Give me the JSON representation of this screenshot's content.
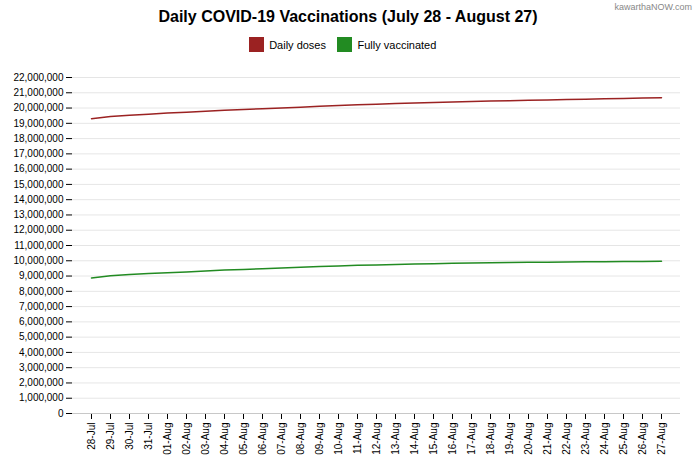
{
  "chart_data": {
    "type": "line",
    "title": "Daily COVID-19 Vaccinations (July 28 - August 27)",
    "annotations": [
      "kawarthaNOW.com"
    ],
    "categories": [
      "28-Jul",
      "29-Jul",
      "30-Jul",
      "31-Jul",
      "01-Aug",
      "02-Aug",
      "03-Aug",
      "04-Aug",
      "05-Aug",
      "06-Aug",
      "07-Aug",
      "08-Aug",
      "09-Aug",
      "10-Aug",
      "11-Aug",
      "12-Aug",
      "13-Aug",
      "14-Aug",
      "15-Aug",
      "16-Aug",
      "17-Aug",
      "18-Aug",
      "19-Aug",
      "20-Aug",
      "21-Aug",
      "22-Aug",
      "23-Aug",
      "24-Aug",
      "25-Aug",
      "26-Aug",
      "27-Aug"
    ],
    "series": [
      {
        "name": "Daily doses",
        "color": "#9B2222",
        "values": [
          19300000,
          19450000,
          19530000,
          19600000,
          19670000,
          19730000,
          19790000,
          19850000,
          19900000,
          19960000,
          20010000,
          20060000,
          20110000,
          20160000,
          20210000,
          20250000,
          20290000,
          20330000,
          20370000,
          20400000,
          20430000,
          20460000,
          20480000,
          20510000,
          20530000,
          20560000,
          20580000,
          20610000,
          20630000,
          20660000,
          20680000
        ]
      },
      {
        "name": "Fully vaccinated",
        "color": "#228B22",
        "values": [
          8870000,
          9020000,
          9100000,
          9160000,
          9210000,
          9270000,
          9330000,
          9390000,
          9430000,
          9480000,
          9530000,
          9580000,
          9620000,
          9660000,
          9700000,
          9730000,
          9760000,
          9790000,
          9810000,
          9830000,
          9850000,
          9870000,
          9890000,
          9900000,
          9910000,
          9920000,
          9930000,
          9940000,
          9950000,
          9960000,
          9970000
        ]
      }
    ],
    "ylim": [
      0,
      22000000
    ],
    "yticks": [
      0,
      {
        "value": 1000000,
        "label": "1,000,000"
      },
      {
        "value": 2000000,
        "label": "2,000,000"
      },
      {
        "value": 3000000,
        "label": "3,000,000"
      },
      {
        "value": 4000000,
        "label": "4,000,000"
      },
      {
        "value": 5000000,
        "label": "5,000,000"
      },
      {
        "value": 6000000,
        "label": "6,000,000"
      },
      {
        "value": 7000000,
        "label": "7,000,000"
      },
      {
        "value": 8000000,
        "label": "8,000,000"
      },
      {
        "value": 9000000,
        "label": "9,000,000"
      },
      {
        "value": 10000000,
        "label": "10,000,000"
      },
      {
        "value": 11000000,
        "label": "11,000,000"
      },
      {
        "value": 12000000,
        "label": "12,000,000"
      },
      {
        "value": 13000000,
        "label": "13,000,000"
      },
      {
        "value": 14000000,
        "label": "14,000,000"
      },
      {
        "value": 15000000,
        "label": "15,000,000"
      },
      {
        "value": 16000000,
        "label": "16,000,000"
      },
      {
        "value": 17000000,
        "label": "17,000,000"
      },
      {
        "value": 18000000,
        "label": "18,000,000"
      },
      {
        "value": 19000000,
        "label": "19,000,000"
      },
      {
        "value": 20000000,
        "label": "20,000,000"
      },
      {
        "value": 21000000,
        "label": "21,000,000"
      },
      {
        "value": 22000000,
        "label": "22,000,000"
      }
    ],
    "grid": true,
    "legend": "upper center"
  }
}
